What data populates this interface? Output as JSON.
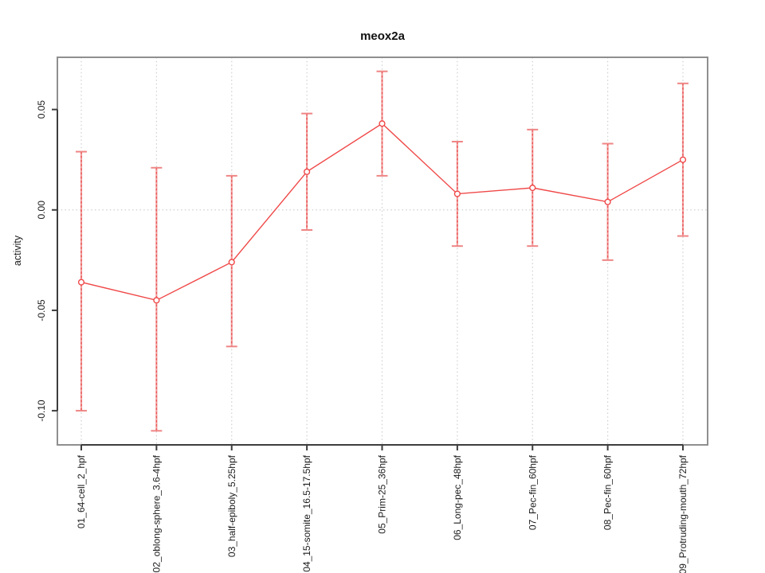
{
  "chart_data": {
    "type": "line",
    "title": "meox2a",
    "xlabel": "",
    "ylabel": "activity",
    "categories": [
      "01_64-cell_2_hpf",
      "02_oblong-sphere_3.6-4hpf",
      "03_half-epiboly_5.25hpf",
      "04_15-somite_16.5-17.5hpf",
      "05_Prim-25_36hpf",
      "06_Long-pec_48hpf",
      "07_Pec-fin_60hpf",
      "08_Pec-fin_60hpf",
      "09_Protruding-mouth_72hpf"
    ],
    "series": [
      {
        "name": "meox2a activity",
        "values": [
          -0.036,
          -0.045,
          -0.026,
          0.019,
          0.043,
          0.008,
          0.011,
          0.004,
          0.025
        ],
        "error_upper": [
          0.029,
          0.021,
          0.017,
          0.048,
          0.069,
          0.034,
          0.04,
          0.033,
          0.063
        ],
        "error_lower": [
          -0.1,
          -0.11,
          -0.068,
          -0.01,
          0.017,
          -0.018,
          -0.018,
          -0.025,
          -0.013
        ]
      }
    ],
    "yticks": [
      0.05,
      0.0,
      -0.05,
      -0.1
    ],
    "ytick_labels": [
      "0.05",
      "0.00",
      "-0.05",
      "-0.10"
    ],
    "ylim": [
      -0.117,
      0.076
    ],
    "grid": "vertical dotted at each category; horizontal dotted at 0",
    "zero_line": true,
    "legend": "none",
    "marker": "open-circle",
    "colors": {
      "line": "#f04848",
      "error_bar": "#f2a0a0",
      "error_bar_dots": "#ea5454",
      "error_cap": "#ef8585",
      "grid": "#cfcfcf",
      "box": "#8f8f8f",
      "axis": "#3d3d3d",
      "text": "#1a1a1a"
    }
  }
}
